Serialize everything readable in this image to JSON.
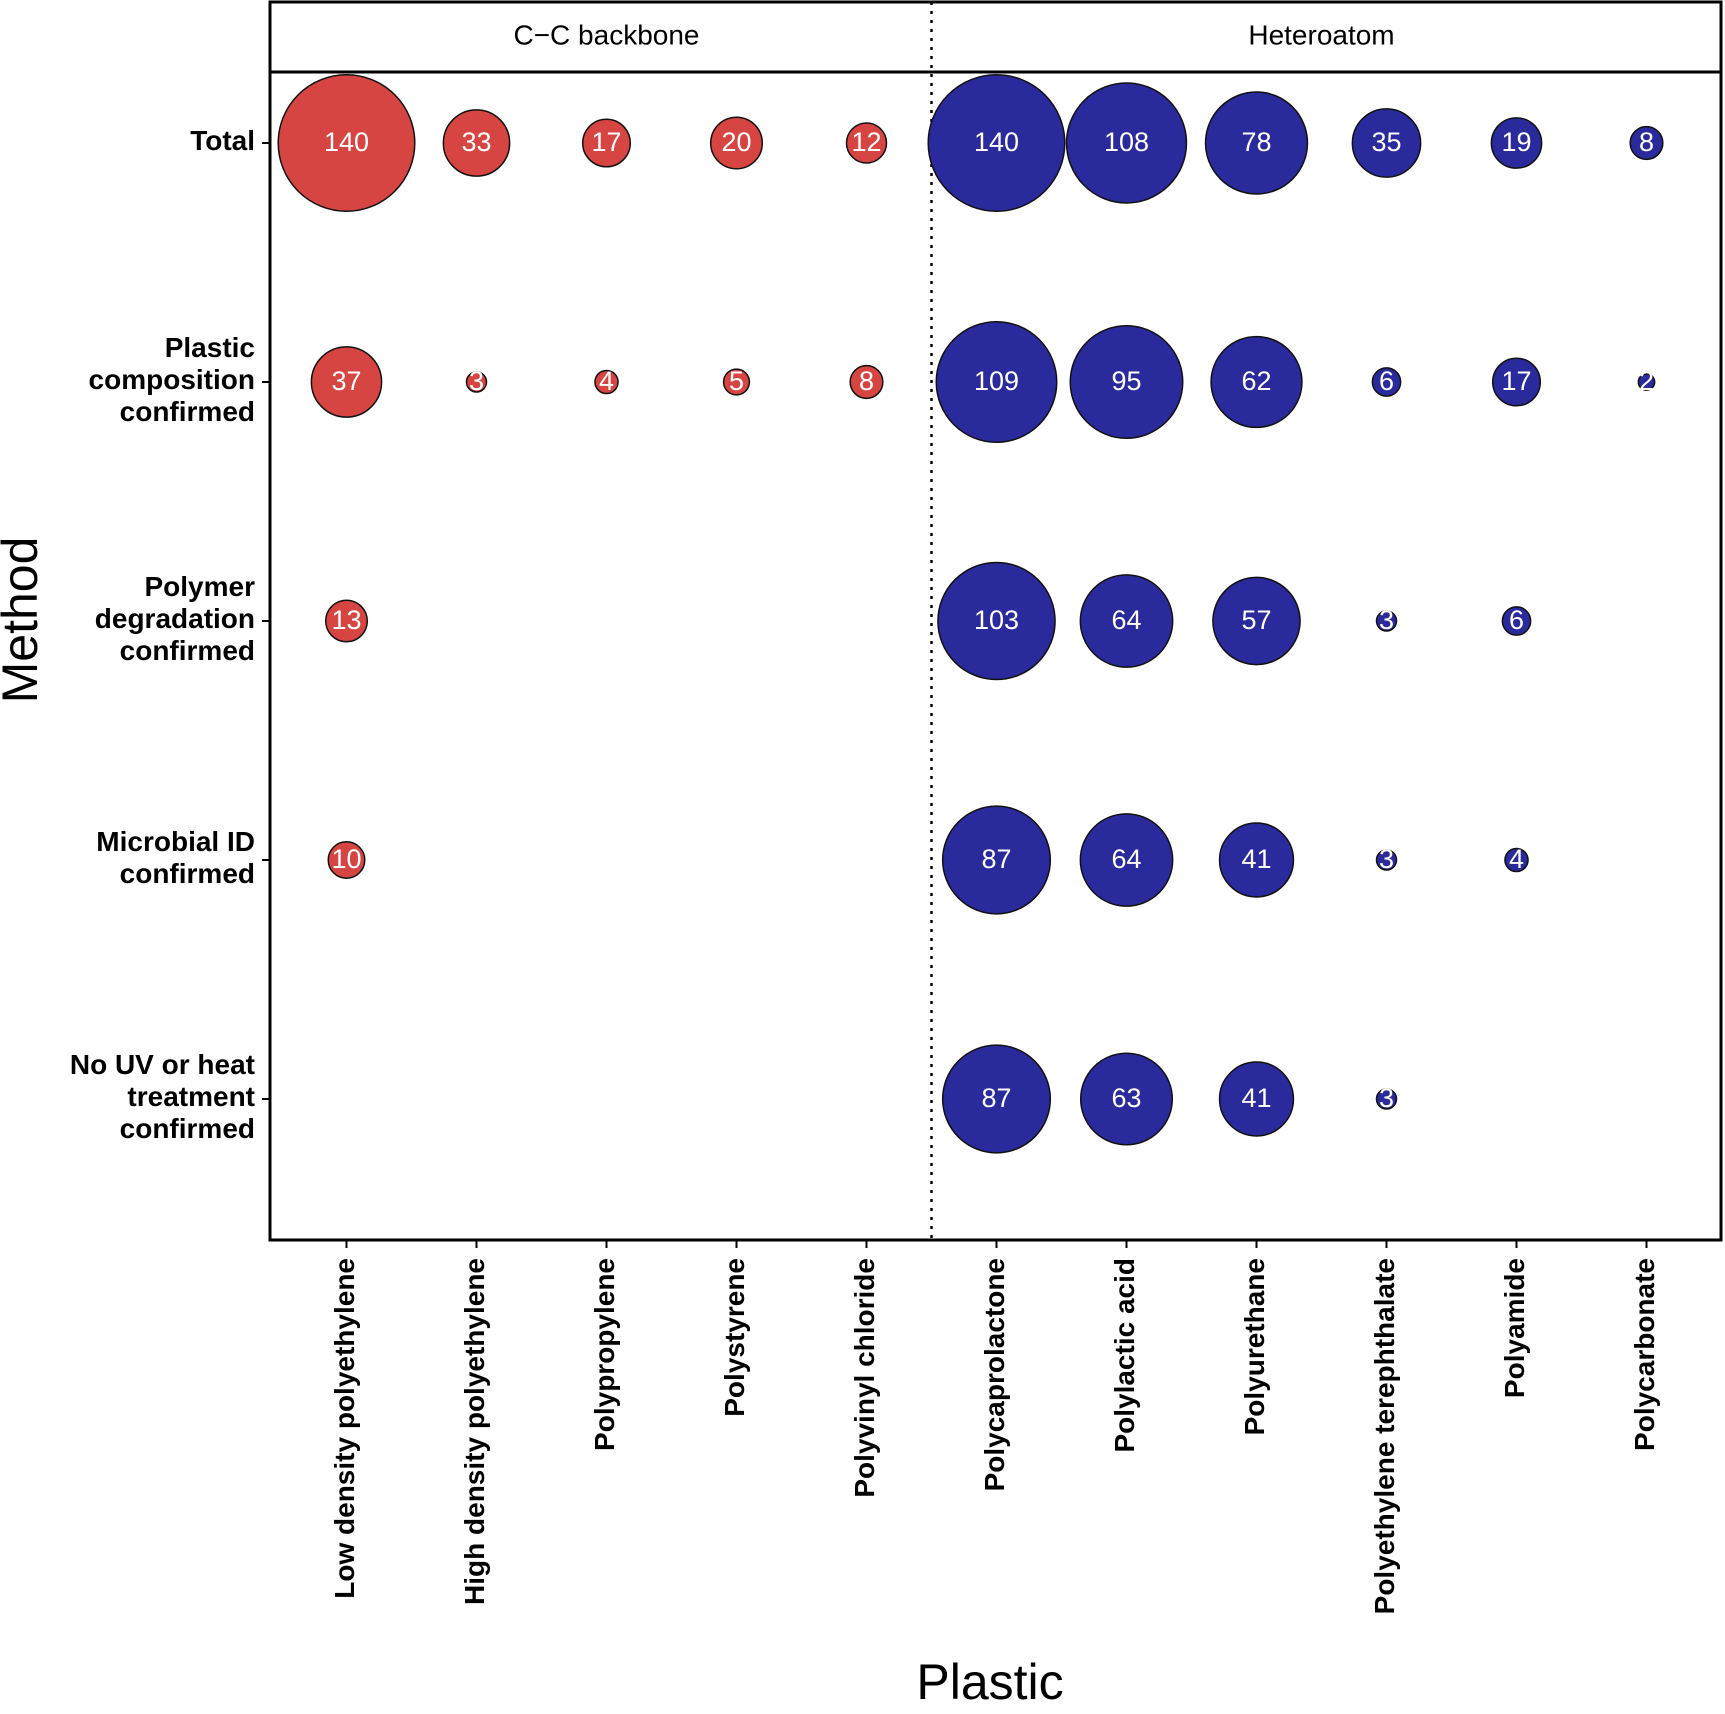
{
  "chart_data": {
    "type": "bubble",
    "x_label": "Plastic",
    "y_label": "Method",
    "rows": [
      "Total",
      "Plastic\ncomposition\nconfirmed",
      "Polymer\ndegradation\nconfirmed",
      "Microbial ID\nconfirmed",
      "No UV or heat\ntreatment\nconfirmed"
    ],
    "facets": [
      {
        "name": "C−C backbone",
        "color": "#d64541",
        "categories": [
          "Low density polyethylene",
          "High density polyethylene",
          "Polypropylene",
          "Polystyrene",
          "Polyvinyl chloride"
        ],
        "values": [
          [
            140,
            33,
            17,
            20,
            12
          ],
          [
            37,
            3,
            4,
            5,
            8
          ],
          [
            13,
            null,
            null,
            null,
            null
          ],
          [
            10,
            null,
            null,
            null,
            null
          ],
          [
            null,
            null,
            null,
            null,
            null
          ]
        ]
      },
      {
        "name": "Heteroatom",
        "color": "#2a2a9c",
        "categories": [
          "Polycaprolactone",
          "Polylactic acid",
          "Polyurethane",
          "Polyethylene terephthalate",
          "Polyamide",
          "Polycarbonate"
        ],
        "values": [
          [
            140,
            108,
            78,
            35,
            19,
            8
          ],
          [
            109,
            95,
            62,
            6,
            17,
            2
          ],
          [
            103,
            64,
            57,
            3,
            6,
            null
          ],
          [
            87,
            64,
            41,
            3,
            4,
            null
          ],
          [
            87,
            63,
            41,
            3,
            null,
            null
          ]
        ]
      }
    ]
  }
}
